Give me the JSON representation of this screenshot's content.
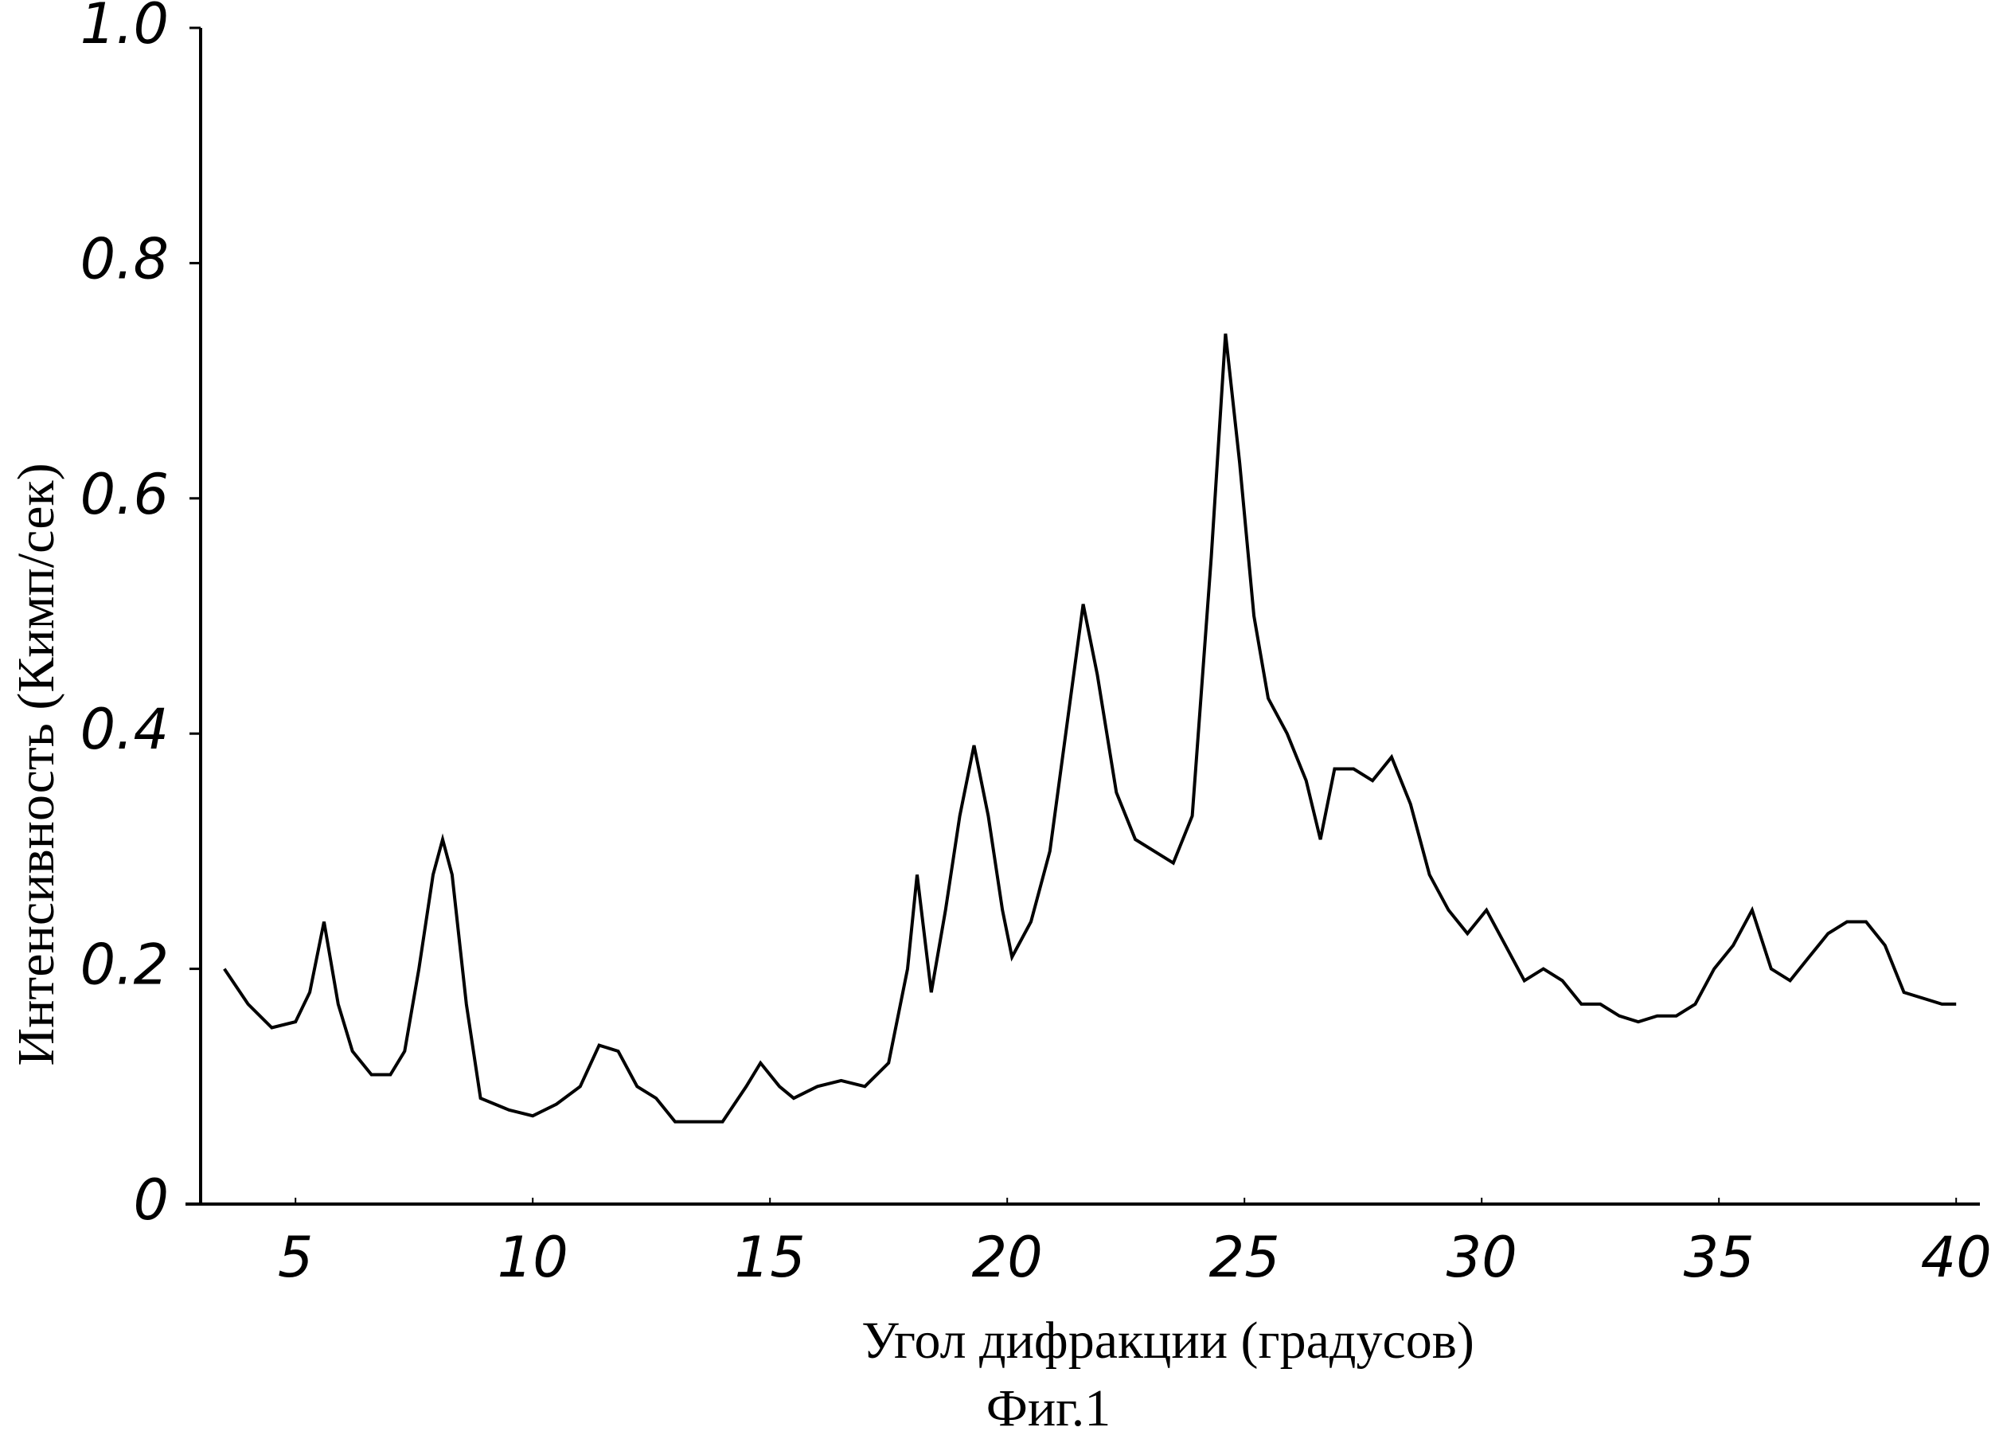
{
  "chart_data": {
    "type": "line",
    "x_label": "Угол дифракции (градусов)",
    "y_label": "Интенсивность (Кимп/сек)",
    "caption": "Фиг.1",
    "color": "#000000",
    "grid": false,
    "xlim": [
      3,
      40.5
    ],
    "ylim": [
      0,
      1
    ],
    "xticks": [
      5,
      10,
      15,
      20,
      25,
      30,
      35,
      40
    ],
    "yticks": [
      0,
      0.2,
      0.4,
      0.6,
      0.8,
      {
        "value": 1,
        "label": "1.0"
      }
    ],
    "x": [
      3.5,
      4.0,
      4.5,
      5.0,
      5.3,
      5.6,
      5.9,
      6.2,
      6.6,
      7.0,
      7.3,
      7.6,
      7.9,
      8.1,
      8.3,
      8.6,
      8.9,
      9.5,
      10.0,
      10.5,
      11.0,
      11.4,
      11.8,
      12.2,
      12.6,
      13.0,
      13.5,
      14.0,
      14.5,
      14.8,
      15.2,
      15.5,
      16.0,
      16.5,
      17.0,
      17.5,
      17.9,
      18.1,
      18.4,
      18.7,
      19.0,
      19.3,
      19.6,
      19.9,
      20.1,
      20.5,
      20.9,
      21.3,
      21.6,
      21.9,
      22.3,
      22.7,
      23.1,
      23.5,
      23.9,
      24.3,
      24.6,
      24.9,
      25.2,
      25.5,
      25.9,
      26.3,
      26.6,
      26.9,
      27.3,
      27.7,
      28.1,
      28.5,
      28.9,
      29.3,
      29.7,
      30.1,
      30.5,
      30.9,
      31.3,
      31.7,
      32.1,
      32.5,
      32.9,
      33.3,
      33.7,
      34.1,
      34.5,
      34.9,
      35.3,
      35.7,
      36.1,
      36.5,
      36.9,
      37.3,
      37.7,
      38.1,
      38.5,
      38.9,
      39.3,
      39.7,
      40.0
    ],
    "values": [
      0.2,
      0.17,
      0.15,
      0.155,
      0.18,
      0.24,
      0.17,
      0.13,
      0.11,
      0.11,
      0.13,
      0.2,
      0.28,
      0.31,
      0.28,
      0.17,
      0.09,
      0.08,
      0.075,
      0.085,
      0.1,
      0.135,
      0.13,
      0.1,
      0.09,
      0.07,
      0.07,
      0.07,
      0.1,
      0.12,
      0.1,
      0.09,
      0.1,
      0.105,
      0.1,
      0.12,
      0.2,
      0.28,
      0.18,
      0.25,
      0.33,
      0.39,
      0.33,
      0.25,
      0.21,
      0.24,
      0.3,
      0.42,
      0.51,
      0.45,
      0.35,
      0.31,
      0.3,
      0.29,
      0.33,
      0.55,
      0.74,
      0.63,
      0.5,
      0.43,
      0.4,
      0.36,
      0.31,
      0.37,
      0.37,
      0.36,
      0.38,
      0.34,
      0.28,
      0.25,
      0.23,
      0.25,
      0.22,
      0.19,
      0.2,
      0.19,
      0.17,
      0.17,
      0.16,
      0.155,
      0.16,
      0.16,
      0.17,
      0.2,
      0.22,
      0.25,
      0.2,
      0.19,
      0.21,
      0.23,
      0.24,
      0.24,
      0.22,
      0.18,
      0.175,
      0.17,
      0.17
    ]
  }
}
